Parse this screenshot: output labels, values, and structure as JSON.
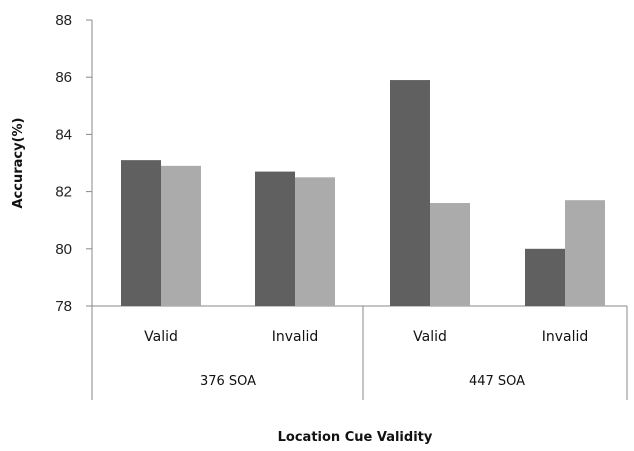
{
  "chart_data": {
    "type": "bar",
    "title": "",
    "xlabel": "Location Cue Validity",
    "ylabel": "Accuracy(%)",
    "ylim": [
      78,
      88
    ],
    "yticks": [
      "78",
      "80",
      "82",
      "84",
      "86",
      "88"
    ],
    "categories": [
      "Valid",
      "Invalid",
      "Valid",
      "Invalid"
    ],
    "groups": [
      {
        "label": "376 SOA",
        "categories": [
          0,
          1
        ]
      },
      {
        "label": "447 SOA",
        "categories": [
          2,
          3
        ]
      }
    ],
    "series": [
      {
        "values": [
          83.1,
          82.7,
          85.9,
          80.0
        ],
        "color": "#606060"
      },
      {
        "values": [
          82.9,
          82.5,
          81.6,
          81.7
        ],
        "color": "#ababab"
      }
    ],
    "legend": "none",
    "grid": false
  }
}
